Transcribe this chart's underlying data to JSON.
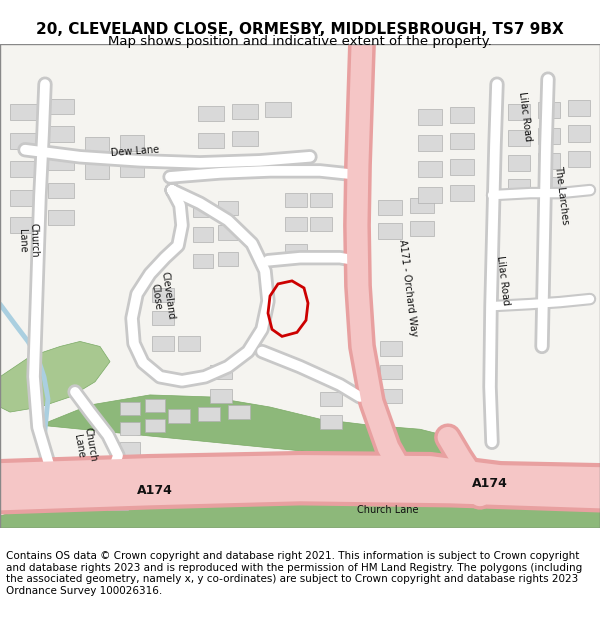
{
  "title_line1": "20, CLEVELAND CLOSE, ORMESBY, MIDDLESBROUGH, TS7 9BX",
  "title_line2": "Map shows position and indicative extent of the property.",
  "footer_text": "Contains OS data © Crown copyright and database right 2021. This information is subject to Crown copyright and database rights 2023 and is reproduced with the permission of HM Land Registry. The polygons (including the associated geometry, namely x, y co-ordinates) are subject to Crown copyright and database rights 2023 Ordnance Survey 100026316.",
  "map_bg": "#f5f4f0",
  "road_main_color": "#f5c6c6",
  "road_main_border": "#e8a0a0",
  "road_minor_color": "#ffffff",
  "road_minor_border": "#c8c8c8",
  "building_fill": "#d9d9d9",
  "building_stroke": "#b0b0b0",
  "green_fill": "#8db87a",
  "green_stroke": "#7aaa65",
  "water_color": "#aacfe0",
  "highlight_color": "#cc0000",
  "title_fontsize": 11,
  "footer_fontsize": 7.5,
  "figsize": [
    6.0,
    6.25
  ],
  "dpi": 100
}
